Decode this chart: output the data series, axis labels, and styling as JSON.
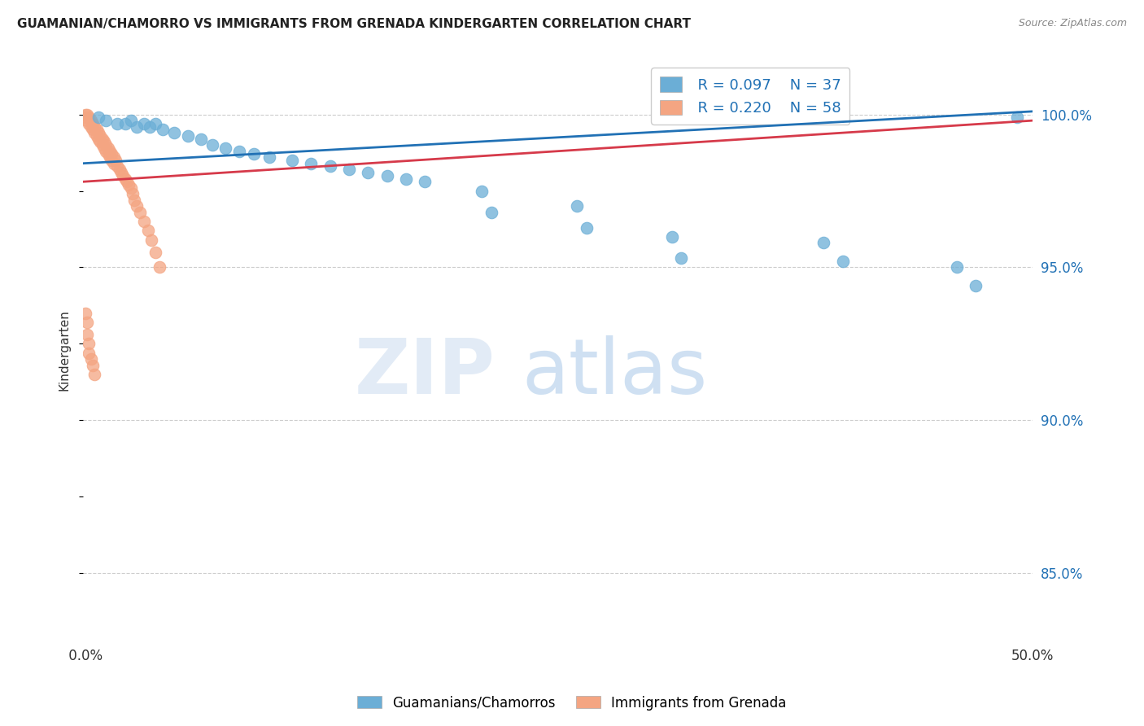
{
  "title": "GUAMANIAN/CHAMORRO VS IMMIGRANTS FROM GRENADA KINDERGARTEN CORRELATION CHART",
  "source": "Source: ZipAtlas.com",
  "ylabel": "Kindergarten",
  "ytick_values": [
    0.85,
    0.9,
    0.95,
    1.0
  ],
  "ytick_labels": [
    "85.0%",
    "90.0%",
    "95.0%",
    "100.0%"
  ],
  "xlim": [
    0.0,
    0.5
  ],
  "ylim": [
    0.828,
    1.018
  ],
  "legend_blue_R": "R = 0.097",
  "legend_blue_N": "N = 37",
  "legend_pink_R": "R = 0.220",
  "legend_pink_N": "N = 58",
  "legend_blue_label": "Guamanians/Chamorros",
  "legend_pink_label": "Immigrants from Grenada",
  "blue_color": "#6baed6",
  "pink_color": "#f4a582",
  "blue_line_color": "#2171b5",
  "pink_line_color": "#d63a4a",
  "blue_scatter_x": [
    0.008,
    0.012,
    0.018,
    0.022,
    0.025,
    0.028,
    0.032,
    0.035,
    0.038,
    0.042,
    0.048,
    0.055,
    0.062,
    0.068,
    0.075,
    0.082,
    0.09,
    0.098,
    0.11,
    0.12,
    0.13,
    0.14,
    0.15,
    0.16,
    0.17,
    0.18,
    0.21,
    0.215,
    0.26,
    0.265,
    0.31,
    0.315,
    0.39,
    0.4,
    0.46,
    0.47,
    0.492
  ],
  "blue_scatter_y": [
    0.999,
    0.998,
    0.997,
    0.997,
    0.998,
    0.996,
    0.997,
    0.996,
    0.997,
    0.995,
    0.994,
    0.993,
    0.992,
    0.99,
    0.989,
    0.988,
    0.987,
    0.986,
    0.985,
    0.984,
    0.983,
    0.982,
    0.981,
    0.98,
    0.979,
    0.978,
    0.975,
    0.968,
    0.97,
    0.963,
    0.96,
    0.953,
    0.958,
    0.952,
    0.95,
    0.944,
    0.999
  ],
  "pink_scatter_x": [
    0.001,
    0.001,
    0.002,
    0.002,
    0.003,
    0.003,
    0.004,
    0.004,
    0.005,
    0.005,
    0.006,
    0.006,
    0.007,
    0.007,
    0.008,
    0.008,
    0.009,
    0.009,
    0.01,
    0.01,
    0.011,
    0.011,
    0.012,
    0.012,
    0.013,
    0.013,
    0.014,
    0.014,
    0.015,
    0.015,
    0.016,
    0.016,
    0.017,
    0.018,
    0.019,
    0.02,
    0.021,
    0.022,
    0.023,
    0.024,
    0.025,
    0.026,
    0.027,
    0.028,
    0.03,
    0.032,
    0.034,
    0.036,
    0.038,
    0.04,
    0.001,
    0.002,
    0.002,
    0.003,
    0.003,
    0.004,
    0.005,
    0.006
  ],
  "pink_scatter_y": [
    1.0,
    0.999,
    1.0,
    0.998,
    0.999,
    0.997,
    0.998,
    0.996,
    0.997,
    0.995,
    0.996,
    0.994,
    0.995,
    0.993,
    0.994,
    0.992,
    0.993,
    0.991,
    0.992,
    0.99,
    0.991,
    0.989,
    0.99,
    0.988,
    0.989,
    0.987,
    0.988,
    0.986,
    0.987,
    0.985,
    0.986,
    0.984,
    0.985,
    0.983,
    0.982,
    0.981,
    0.98,
    0.979,
    0.978,
    0.977,
    0.976,
    0.974,
    0.972,
    0.97,
    0.968,
    0.965,
    0.962,
    0.959,
    0.955,
    0.95,
    0.935,
    0.932,
    0.928,
    0.925,
    0.922,
    0.92,
    0.918,
    0.915
  ],
  "blue_trend_x": [
    0.0,
    0.5
  ],
  "blue_trend_y": [
    0.984,
    1.001
  ],
  "pink_trend_x": [
    0.0,
    0.5
  ],
  "pink_trend_y": [
    0.978,
    0.998
  ],
  "grid_color": "#cccccc",
  "grid_linestyle": "--",
  "grid_linewidth": 0.8
}
